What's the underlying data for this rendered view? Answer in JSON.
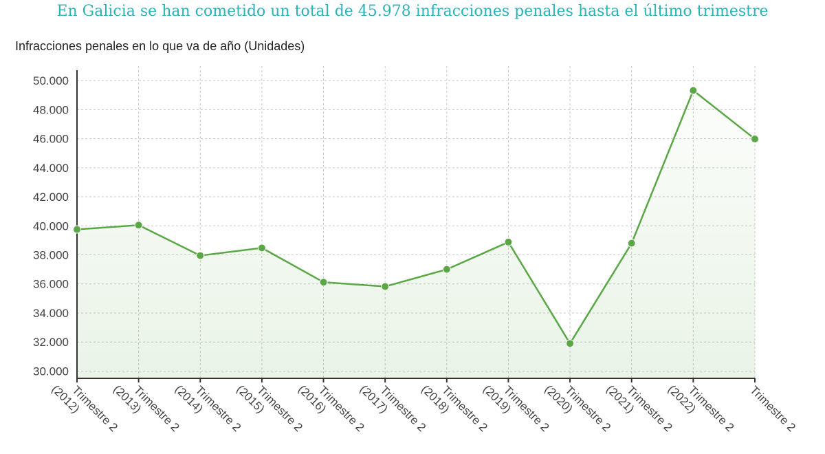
{
  "headline": "En Galicia se han cometido un total de 45.978 infracciones penales hasta el último trimestre",
  "colors": {
    "headline": "#2bb3b8",
    "line": "#5aa845",
    "area": "#5aa845",
    "grid": "#c8c8c8",
    "axis": "#333333"
  },
  "chart_data": {
    "type": "line",
    "title": "Infracciones penales en lo que va de año (Unidades)",
    "grid": true,
    "ylim": [
      29500,
      51000
    ],
    "yticks": [
      30000,
      32000,
      34000,
      36000,
      38000,
      40000,
      42000,
      44000,
      46000,
      48000,
      50000
    ],
    "ytick_labels": [
      "30.000",
      "32.000",
      "34.000",
      "36.000",
      "38.000",
      "40.000",
      "42.000",
      "44.000",
      "46.000",
      "48.000",
      "50.000"
    ],
    "categories": [
      [
        "Trimestre 2",
        "(2012)"
      ],
      [
        "Trimestre 2",
        "(2013)"
      ],
      [
        "Trimestre 2",
        "(2014)"
      ],
      [
        "Trimestre 2",
        "(2015)"
      ],
      [
        "Trimestre 2",
        "(2016)"
      ],
      [
        "Trimestre 2",
        "(2017)"
      ],
      [
        "Trimestre 2",
        "(2018)"
      ],
      [
        "Trimestre 2",
        "(2019)"
      ],
      [
        "Trimestre 2",
        "(2020)"
      ],
      [
        "Trimestre 2",
        "(2021)"
      ],
      [
        "Trimestre 2",
        "(2022)"
      ],
      [
        "Trimestre 2"
      ]
    ],
    "values": [
      39750,
      40050,
      37950,
      38480,
      36120,
      35820,
      37000,
      38880,
      31900,
      38800,
      49320,
      45978
    ]
  }
}
